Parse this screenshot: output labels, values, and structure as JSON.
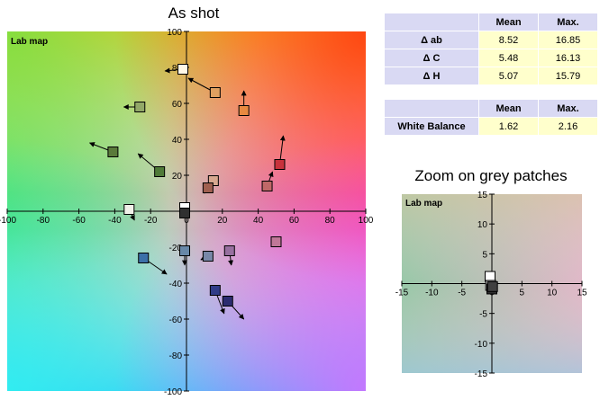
{
  "titles": {
    "main": "As shot",
    "zoom": "Zoom on grey patches"
  },
  "delta_table": {
    "headers": [
      "",
      "Mean",
      "Max."
    ],
    "rows": [
      {
        "label": "Δ ab",
        "mean": "8.52",
        "max": "16.85"
      },
      {
        "label": "Δ C",
        "mean": "5.48",
        "max": "16.13"
      },
      {
        "label": "Δ H",
        "mean": "5.07",
        "max": "15.79"
      }
    ]
  },
  "wb_table": {
    "headers": [
      "",
      "Mean",
      "Max."
    ],
    "rows": [
      {
        "label": "White Balance",
        "mean": "1.62",
        "max": "2.16"
      }
    ]
  },
  "chart_data": [
    {
      "type": "scatter",
      "title": "As shot",
      "plot_label": "Lab map",
      "xlim": [
        -100,
        100
      ],
      "ylim": [
        -100,
        100
      ],
      "xticks": [
        -100,
        -80,
        -60,
        -40,
        -20,
        0,
        20,
        40,
        60,
        80,
        100
      ],
      "yticks": [
        -100,
        -80,
        -60,
        -40,
        -20,
        0,
        20,
        40,
        60,
        80,
        100
      ],
      "grid": false,
      "patches": [
        {
          "a": -2,
          "b": 79,
          "ta": -12,
          "tb": 78,
          "color": "#fff8e8"
        },
        {
          "a": 16,
          "b": 66,
          "ta": 1,
          "tb": 74,
          "color": "#e0a060"
        },
        {
          "a": 32,
          "b": 56,
          "ta": 32,
          "tb": 67,
          "color": "#e88a40"
        },
        {
          "a": -26,
          "b": 58,
          "ta": -35,
          "tb": 58,
          "color": "#92a868"
        },
        {
          "a": -41,
          "b": 33,
          "ta": -54,
          "tb": 38,
          "color": "#5a7a3a"
        },
        {
          "a": -15,
          "b": 22,
          "ta": -27,
          "tb": 32,
          "color": "#4f7a38"
        },
        {
          "a": 52,
          "b": 26,
          "ta": 54,
          "tb": 42,
          "color": "#c8323c"
        },
        {
          "a": 45,
          "b": 14,
          "ta": 48,
          "tb": 22,
          "color": "#c06868"
        },
        {
          "a": 15,
          "b": 17,
          "ta": 12,
          "tb": 13,
          "color": "#d8a890"
        },
        {
          "a": 12,
          "b": 13,
          "ta": 10,
          "tb": 10,
          "color": "#a06050"
        },
        {
          "a": -32,
          "b": 1,
          "ta": -29,
          "tb": -5,
          "color": "#f0f0e8"
        },
        {
          "a": -1,
          "b": 2,
          "ta": 0,
          "tb": -2,
          "color": "#ffffff"
        },
        {
          "a": -1,
          "b": -1,
          "ta": 0,
          "tb": -3,
          "color": "#303030"
        },
        {
          "a": -1,
          "b": -22,
          "ta": -1,
          "tb": -30,
          "color": "#6888a8"
        },
        {
          "a": 12,
          "b": -25,
          "ta": 8,
          "tb": -27,
          "color": "#7888a8"
        },
        {
          "a": 24,
          "b": -22,
          "ta": 25,
          "tb": -30,
          "color": "#9870a0"
        },
        {
          "a": 50,
          "b": -17,
          "ta": 52,
          "tb": -19,
          "color": "#c07898"
        },
        {
          "a": -24,
          "b": -26,
          "ta": -11,
          "tb": -35,
          "color": "#3c70a8"
        },
        {
          "a": 16,
          "b": -44,
          "ta": 21,
          "tb": -57,
          "color": "#303c88"
        },
        {
          "a": 23,
          "b": -50,
          "ta": 32,
          "tb": -60,
          "color": "#2c2c70"
        }
      ]
    },
    {
      "type": "scatter",
      "title": "Zoom on grey patches",
      "plot_label": "Lab map",
      "xlim": [
        -15,
        15
      ],
      "ylim": [
        -15,
        15
      ],
      "xticks": [
        -15,
        -10,
        -5,
        0,
        5,
        10,
        15
      ],
      "yticks": [
        -15,
        -10,
        -5,
        0,
        5,
        10,
        15
      ],
      "grid": false,
      "patches": [
        {
          "a": -0.3,
          "b": 1.2,
          "ta": -0.1,
          "tb": -0.3,
          "color": "#ffffff"
        },
        {
          "a": -0.2,
          "b": -0.3,
          "ta": 0.1,
          "tb": -0.6,
          "color": "#e0e0e0"
        },
        {
          "a": 0.0,
          "b": -0.9,
          "ta": -0.6,
          "tb": -1.6,
          "color": "#303030"
        },
        {
          "a": 0.1,
          "b": -0.5,
          "ta": 0.0,
          "tb": -1.2,
          "color": "#404040"
        }
      ]
    }
  ]
}
